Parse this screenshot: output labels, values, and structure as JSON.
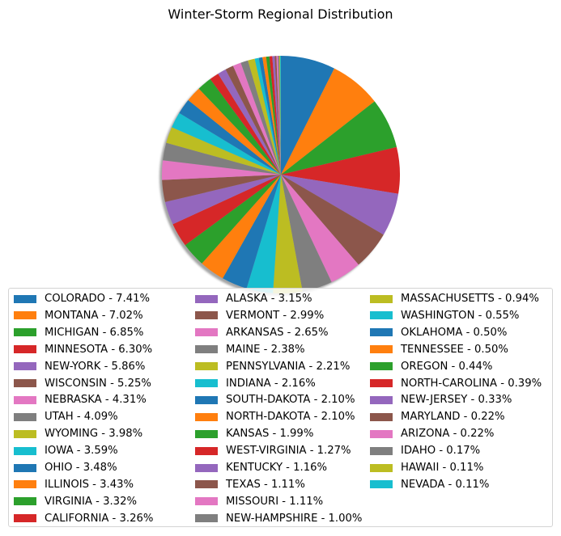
{
  "chart_data": {
    "type": "pie",
    "title": "Winter-Storm Regional Distribution",
    "start_angle_deg": 90,
    "direction": "clockwise",
    "shadow": true,
    "legend_placement": "bottom",
    "legend_columns": 3,
    "slices": [
      {
        "label": "COLORADO",
        "value": 7.41,
        "legend": "COLORADO - 7.41%",
        "color": "#1f77b4"
      },
      {
        "label": "MONTANA",
        "value": 7.02,
        "legend": "MONTANA - 7.02%",
        "color": "#ff7f0e"
      },
      {
        "label": "MICHIGAN",
        "value": 6.85,
        "legend": "MICHIGAN - 6.85%",
        "color": "#2ca02c"
      },
      {
        "label": "MINNESOTA",
        "value": 6.3,
        "legend": "MINNESOTA - 6.30%",
        "color": "#d62728"
      },
      {
        "label": "NEW-YORK",
        "value": 5.86,
        "legend": "NEW-YORK - 5.86%",
        "color": "#9467bd"
      },
      {
        "label": "WISCONSIN",
        "value": 5.25,
        "legend": "WISCONSIN - 5.25%",
        "color": "#8c564b"
      },
      {
        "label": "NEBRASKA",
        "value": 4.31,
        "legend": "NEBRASKA - 4.31%",
        "color": "#e377c2"
      },
      {
        "label": "UTAH",
        "value": 4.09,
        "legend": "UTAH - 4.09%",
        "color": "#7f7f7f"
      },
      {
        "label": "WYOMING",
        "value": 3.98,
        "legend": "WYOMING - 3.98%",
        "color": "#bcbd22"
      },
      {
        "label": "IOWA",
        "value": 3.59,
        "legend": "IOWA - 3.59%",
        "color": "#17becf"
      },
      {
        "label": "OHIO",
        "value": 3.48,
        "legend": "OHIO - 3.48%",
        "color": "#1f77b4"
      },
      {
        "label": "ILLINOIS",
        "value": 3.43,
        "legend": "ILLINOIS - 3.43%",
        "color": "#ff7f0e"
      },
      {
        "label": "VIRGINIA",
        "value": 3.32,
        "legend": "VIRGINIA - 3.32%",
        "color": "#2ca02c"
      },
      {
        "label": "CALIFORNIA",
        "value": 3.26,
        "legend": "CALIFORNIA - 3.26%",
        "color": "#d62728"
      },
      {
        "label": "ALASKA",
        "value": 3.15,
        "legend": "ALASKA - 3.15%",
        "color": "#9467bd"
      },
      {
        "label": "VERMONT",
        "value": 2.99,
        "legend": "VERMONT - 2.99%",
        "color": "#8c564b"
      },
      {
        "label": "ARKANSAS",
        "value": 2.65,
        "legend": "ARKANSAS - 2.65%",
        "color": "#e377c2"
      },
      {
        "label": "MAINE",
        "value": 2.38,
        "legend": "MAINE - 2.38%",
        "color": "#7f7f7f"
      },
      {
        "label": "PENNSYLVANIA",
        "value": 2.21,
        "legend": "PENNSYLVANIA - 2.21%",
        "color": "#bcbd22"
      },
      {
        "label": "INDIANA",
        "value": 2.16,
        "legend": "INDIANA - 2.16%",
        "color": "#17becf"
      },
      {
        "label": "SOUTH-DAKOTA",
        "value": 2.1,
        "legend": "SOUTH-DAKOTA - 2.10%",
        "color": "#1f77b4"
      },
      {
        "label": "NORTH-DAKOTA",
        "value": 2.1,
        "legend": "NORTH-DAKOTA - 2.10%",
        "color": "#ff7f0e"
      },
      {
        "label": "KANSAS",
        "value": 1.99,
        "legend": "KANSAS - 1.99%",
        "color": "#2ca02c"
      },
      {
        "label": "WEST-VIRGINIA",
        "value": 1.27,
        "legend": "WEST-VIRGINIA - 1.27%",
        "color": "#d62728"
      },
      {
        "label": "KENTUCKY",
        "value": 1.16,
        "legend": "KENTUCKY - 1.16%",
        "color": "#9467bd"
      },
      {
        "label": "TEXAS",
        "value": 1.11,
        "legend": "TEXAS - 1.11%",
        "color": "#8c564b"
      },
      {
        "label": "MISSOURI",
        "value": 1.11,
        "legend": "MISSOURI - 1.11%",
        "color": "#e377c2"
      },
      {
        "label": "NEW-HAMPSHIRE",
        "value": 1.0,
        "legend": "NEW-HAMPSHIRE - 1.00%",
        "color": "#7f7f7f"
      },
      {
        "label": "MASSACHUSETTS",
        "value": 0.94,
        "legend": "MASSACHUSETTS - 0.94%",
        "color": "#bcbd22"
      },
      {
        "label": "WASHINGTON",
        "value": 0.55,
        "legend": "WASHINGTON - 0.55%",
        "color": "#17becf"
      },
      {
        "label": "OKLAHOMA",
        "value": 0.5,
        "legend": "OKLAHOMA - 0.50%",
        "color": "#1f77b4"
      },
      {
        "label": "TENNESSEE",
        "value": 0.5,
        "legend": "TENNESSEE - 0.50%",
        "color": "#ff7f0e"
      },
      {
        "label": "OREGON",
        "value": 0.44,
        "legend": "OREGON - 0.44%",
        "color": "#2ca02c"
      },
      {
        "label": "NORTH-CAROLINA",
        "value": 0.39,
        "legend": "NORTH-CAROLINA - 0.39%",
        "color": "#d62728"
      },
      {
        "label": "NEW-JERSEY",
        "value": 0.33,
        "legend": "NEW-JERSEY - 0.33%",
        "color": "#9467bd"
      },
      {
        "label": "MARYLAND",
        "value": 0.22,
        "legend": "MARYLAND - 0.22%",
        "color": "#8c564b"
      },
      {
        "label": "ARIZONA",
        "value": 0.22,
        "legend": "ARIZONA - 0.22%",
        "color": "#e377c2"
      },
      {
        "label": "IDAHO",
        "value": 0.17,
        "legend": "IDAHO - 0.17%",
        "color": "#7f7f7f"
      },
      {
        "label": "HAWAII",
        "value": 0.11,
        "legend": "HAWAII - 0.11%",
        "color": "#bcbd22"
      },
      {
        "label": "NEVADA",
        "value": 0.11,
        "legend": "NEVADA - 0.11%",
        "color": "#17becf"
      }
    ]
  }
}
